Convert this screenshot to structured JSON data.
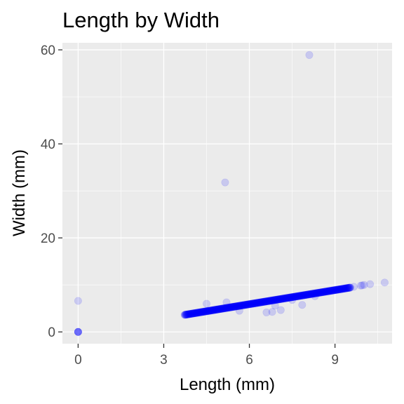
{
  "chart_data": {
    "type": "scatter",
    "title": "Length by Width",
    "xlabel": "Length (mm)",
    "ylabel": "Width (mm)",
    "xlim": [
      -0.55,
      11.0
    ],
    "ylim": [
      -2.5,
      61.5
    ],
    "x_ticks": [
      0,
      3,
      6,
      9
    ],
    "y_ticks": [
      0,
      20,
      40,
      60
    ],
    "grid": true,
    "legend": "none",
    "point_color": "#0000ff",
    "point_opacity": 0.15,
    "panel_color": "#ebebeb",
    "trend_band": {
      "x_start": 3.73,
      "x_end": 9.54,
      "intercept": -0.1,
      "slope": 1.0,
      "count": 520
    },
    "points": [
      {
        "x": 0,
        "y": 0
      },
      {
        "x": 0,
        "y": 0
      },
      {
        "x": 0,
        "y": 0
      },
      {
        "x": 0,
        "y": 0
      },
      {
        "x": 0,
        "y": 0
      },
      {
        "x": 0,
        "y": 6.6
      },
      {
        "x": 8.1,
        "y": 58.9
      },
      {
        "x": 5.15,
        "y": 31.8
      },
      {
        "x": 10.74,
        "y": 10.5
      },
      {
        "x": 10.23,
        "y": 10.16
      },
      {
        "x": 10.02,
        "y": 10.0
      },
      {
        "x": 9.95,
        "y": 9.9
      },
      {
        "x": 9.9,
        "y": 9.85
      },
      {
        "x": 9.66,
        "y": 9.6
      },
      {
        "x": 7.85,
        "y": 5.75
      },
      {
        "x": 7.1,
        "y": 4.65
      },
      {
        "x": 6.8,
        "y": 4.25
      },
      {
        "x": 6.6,
        "y": 4.15
      },
      {
        "x": 5.65,
        "y": 4.5
      },
      {
        "x": 4.5,
        "y": 6.0
      },
      {
        "x": 5.2,
        "y": 6.3
      },
      {
        "x": 6.9,
        "y": 5.6
      },
      {
        "x": 7.5,
        "y": 6.8
      },
      {
        "x": 8.3,
        "y": 7.6
      }
    ]
  }
}
